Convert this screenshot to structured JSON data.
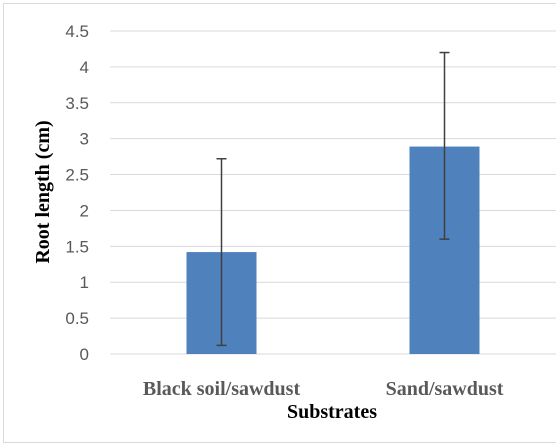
{
  "chart_data": {
    "type": "bar",
    "categories": [
      "Black soil/sawdust",
      "Sand/sawdust"
    ],
    "values": [
      1.42,
      2.89
    ],
    "error_bars": [
      {
        "low": 0.12,
        "high": 2.72
      },
      {
        "low": 1.6,
        "high": 4.2
      }
    ],
    "xlabel": "Substrates",
    "ylabel": "Root length (cm)",
    "ylim": [
      0,
      4.5
    ],
    "yticks": [
      "0",
      "0.5",
      "1",
      "1.5",
      "2",
      "2.5",
      "3",
      "3.5",
      "4",
      "4.5"
    ],
    "grid": true,
    "legend": false,
    "colors": {
      "bar": "#4f81bd",
      "grid": "#d9d9d9",
      "error": "#404040"
    }
  }
}
